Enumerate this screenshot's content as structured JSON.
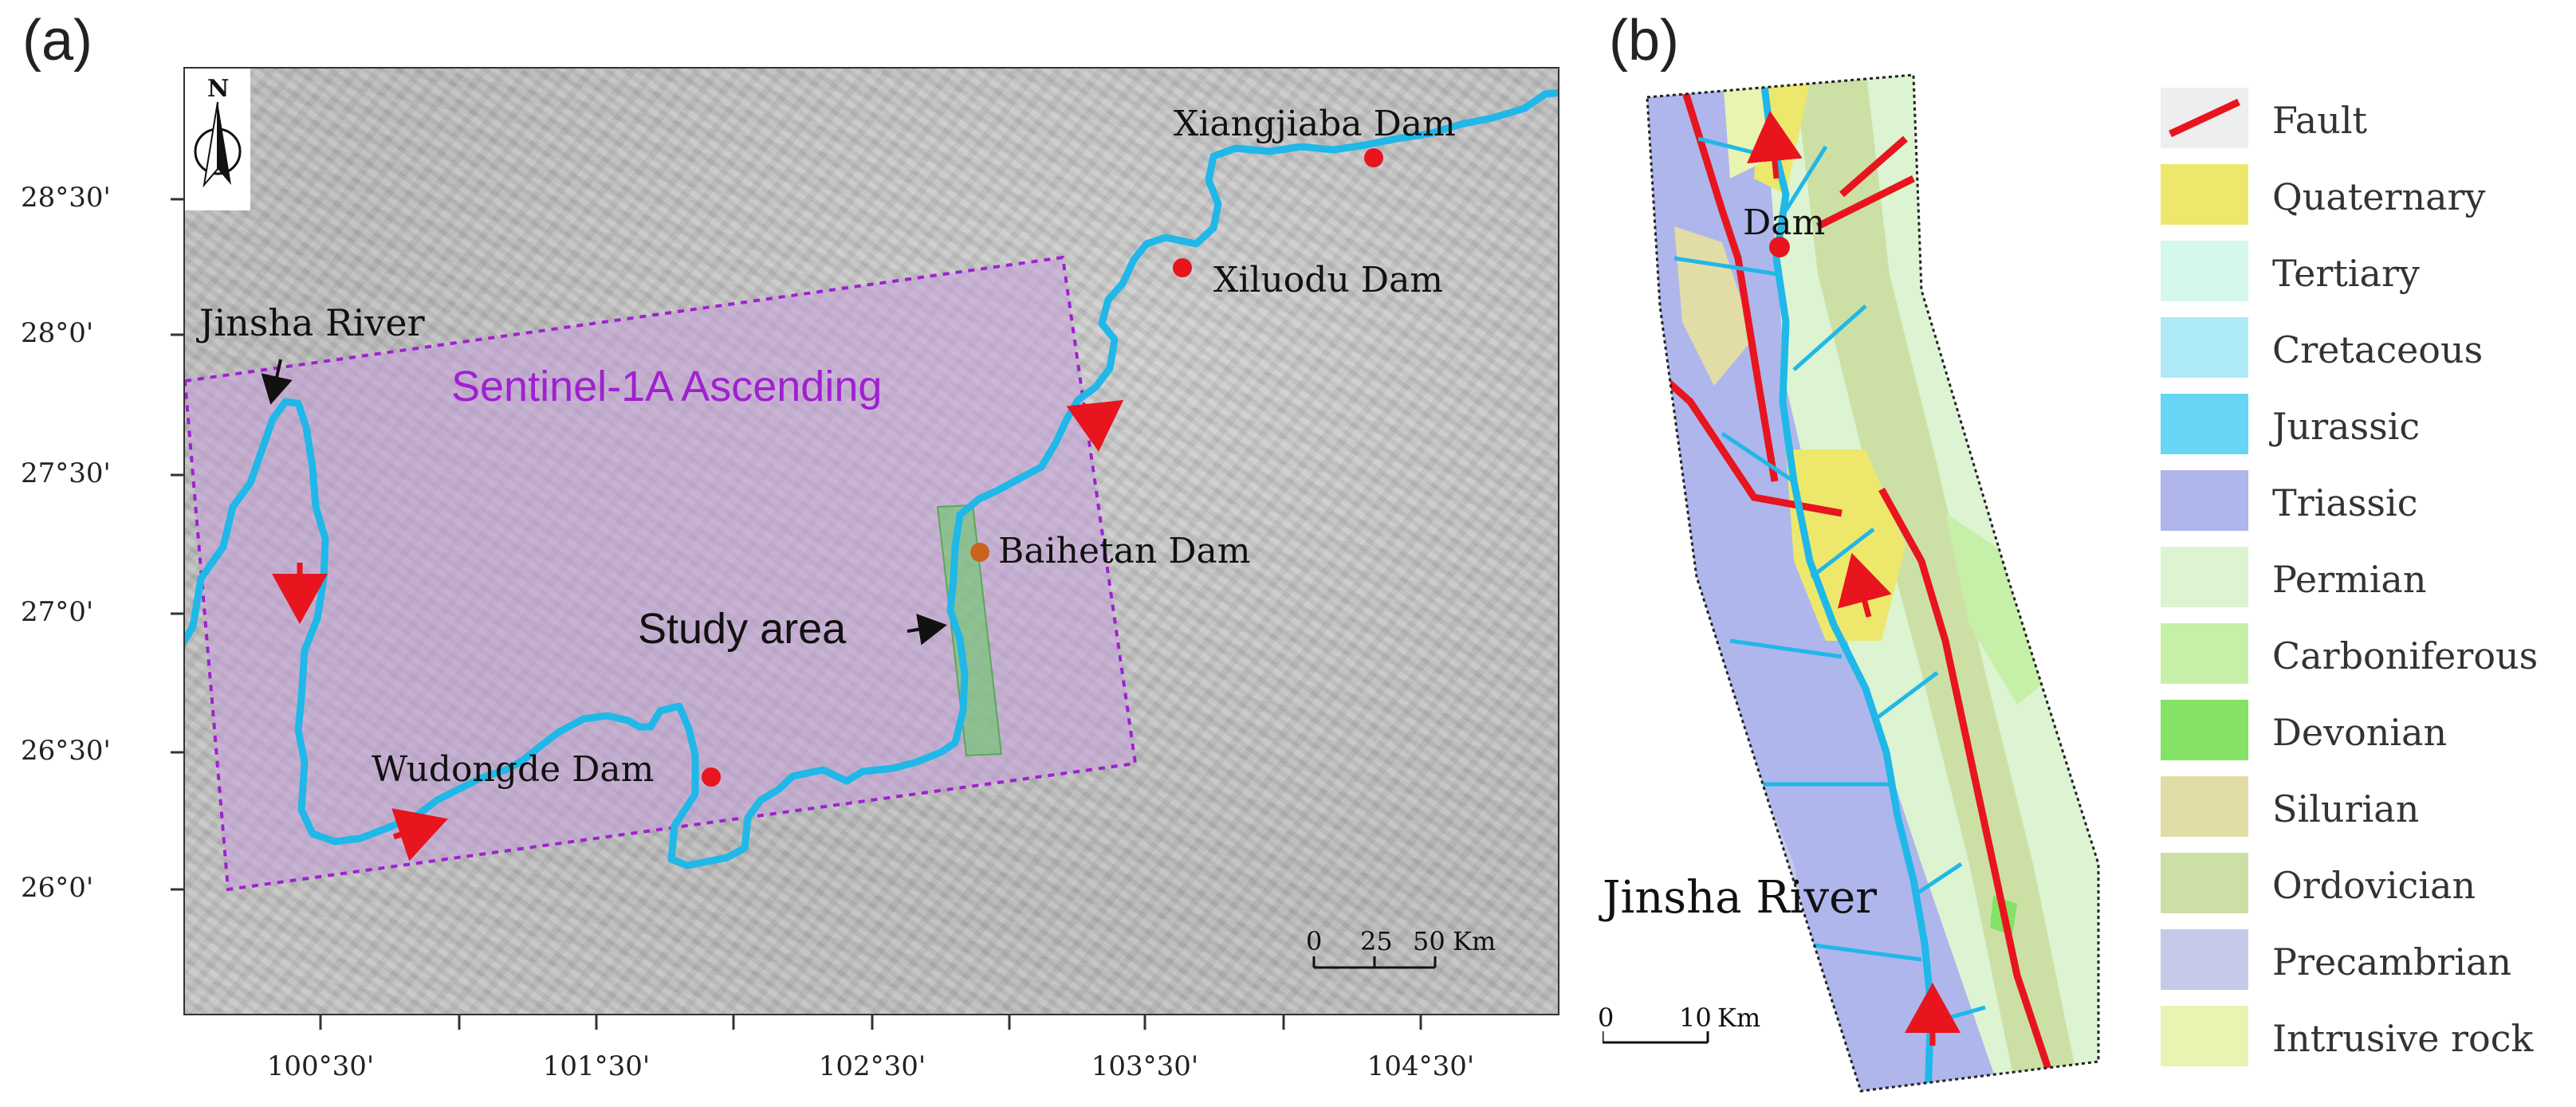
{
  "panel_a": {
    "label": "(a)",
    "lat_ticks": [
      "28°30'",
      "28°0'",
      "27°30'",
      "27°0'",
      "26°30'",
      "26°0'"
    ],
    "lon_ticks": [
      "100°30'",
      "101°30'",
      "102°30'",
      "103°30'",
      "104°30'"
    ],
    "north_arrow": "N",
    "river_label": "Jinsha River",
    "coverage_label": "Sentinel-1A Ascending",
    "study_area_label": "Study area",
    "dams": [
      {
        "name": "Xiangjiaba Dam",
        "color": "#e8141e"
      },
      {
        "name": "Xiluodu Dam",
        "color": "#e8141e"
      },
      {
        "name": "Baihetan Dam",
        "color": "#c8641e"
      },
      {
        "name": "Wudongde Dam",
        "color": "#e8141e"
      }
    ],
    "scalebar": {
      "labels": [
        "0",
        "25",
        "50"
      ],
      "unit": "Km"
    },
    "colors": {
      "river": "#1fb8e8",
      "coverage_fill": "#c8a0dc",
      "coverage_text": "#a020d0",
      "study_area": "#70c870",
      "flow_arrow": "#e8141e"
    }
  },
  "panel_b": {
    "label": "(b)",
    "dam_label": "Dam",
    "river_label": "Jinsha River",
    "scalebar": {
      "labels": [
        "0",
        "10"
      ],
      "unit": "Km"
    },
    "legend": [
      {
        "label": "Fault",
        "color": "#e8141e",
        "type": "line"
      },
      {
        "label": "Quaternary",
        "color": "#ede86c"
      },
      {
        "label": "Tertiary",
        "color": "#d4f7ee"
      },
      {
        "label": "Cretaceous",
        "color": "#aeeaf8"
      },
      {
        "label": "Jurassic",
        "color": "#66d6f4"
      },
      {
        "label": "Triassic",
        "color": "#aeb6ec"
      },
      {
        "label": "Permian",
        "color": "#dcf4d2"
      },
      {
        "label": "Carboniferous",
        "color": "#c6f0a8"
      },
      {
        "label": "Devonian",
        "color": "#84e266"
      },
      {
        "label": "Silurian",
        "color": "#e2dca6"
      },
      {
        "label": "Ordovician",
        "color": "#cce0a6"
      },
      {
        "label": "Precambrian",
        "color": "#c4cae8"
      },
      {
        "label": "Intrusive rock",
        "color": "#e8f4b2"
      }
    ]
  }
}
